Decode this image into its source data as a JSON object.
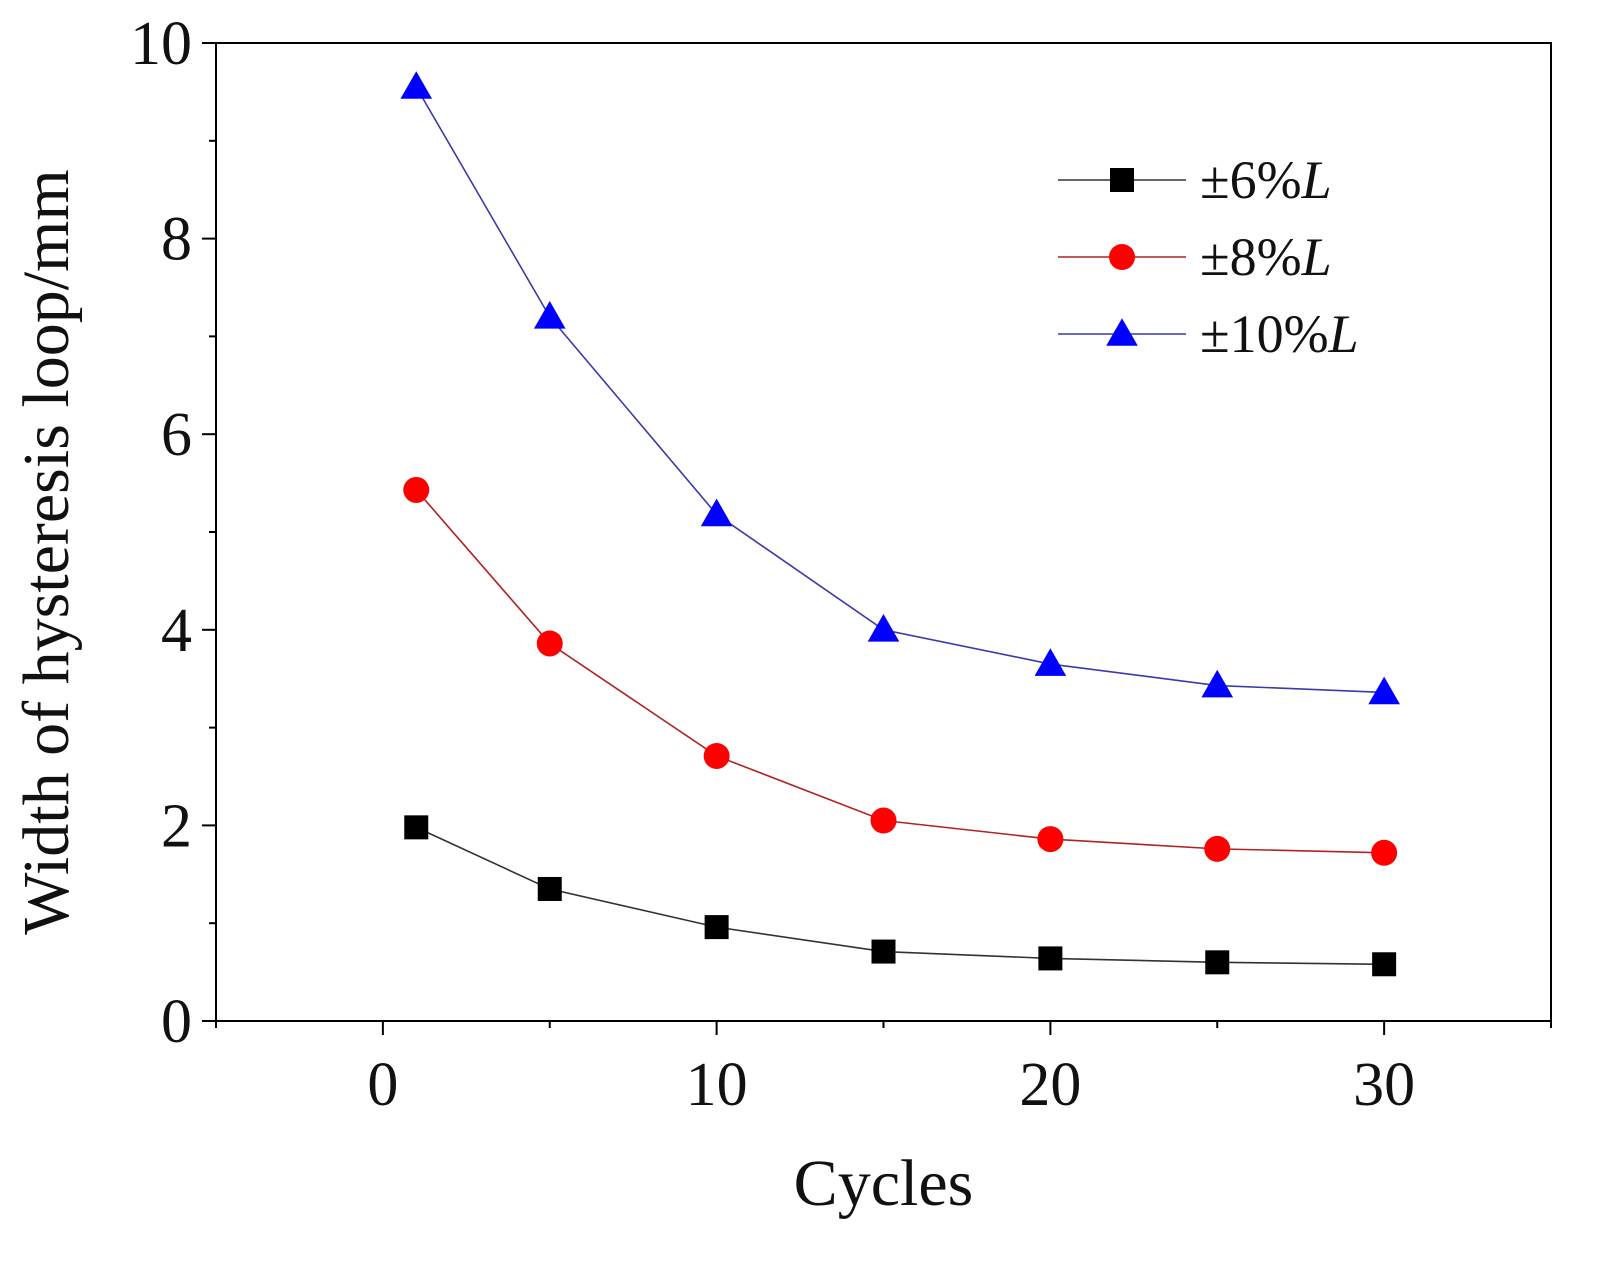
{
  "chart_data": {
    "type": "line",
    "xlabel": "Cycles",
    "ylabel": "Width of hysteresis loop/mm",
    "xlim": [
      -5,
      35
    ],
    "ylim": [
      0,
      10
    ],
    "xticks": [
      0,
      10,
      20,
      30
    ],
    "yticks": [
      0,
      2,
      4,
      6,
      8,
      10
    ],
    "grid": false,
    "legend_position": "top-right",
    "x": [
      1,
      5,
      10,
      15,
      20,
      25,
      30
    ],
    "series": [
      {
        "name": "±6%",
        "name_italic_suffix": "L",
        "marker": "square",
        "color": "#000000",
        "line_color": "#333333",
        "values": [
          1.98,
          1.35,
          0.96,
          0.71,
          0.64,
          0.6,
          0.58
        ]
      },
      {
        "name": "±8%",
        "name_italic_suffix": "L",
        "marker": "circle",
        "color": "#ff0000",
        "line_color": "#b22222",
        "values": [
          5.43,
          3.86,
          2.71,
          2.05,
          1.86,
          1.76,
          1.72
        ]
      },
      {
        "name": "±10%",
        "name_italic_suffix": "L",
        "marker": "triangle",
        "color": "#0000ff",
        "line_color": "#3a3aa8",
        "values": [
          9.55,
          7.2,
          5.18,
          4.0,
          3.65,
          3.43,
          3.36
        ]
      }
    ]
  }
}
